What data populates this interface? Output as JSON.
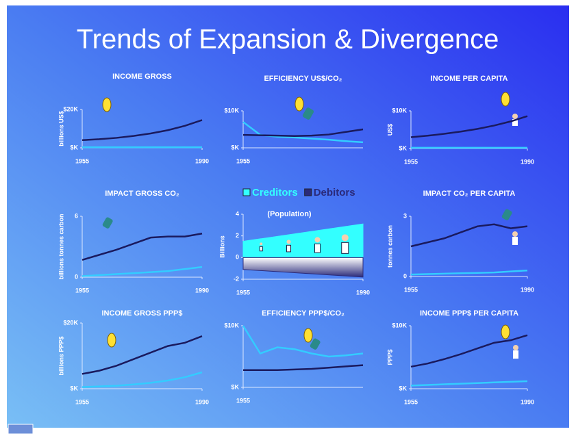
{
  "slide_title": "Trends of Expansion & Divergence",
  "chart_data": [
    {
      "type": "line",
      "title": "INCOME GROSS",
      "ylabel": "billions US$",
      "x": [
        1955,
        1960,
        1965,
        1970,
        1975,
        1980,
        1985,
        1990
      ],
      "series": [
        {
          "color": "#33ccff",
          "values": [
            300,
            300,
            300,
            300,
            300,
            300,
            300,
            300
          ]
        },
        {
          "color": "#1a1a5e",
          "values": [
            4000,
            4500,
            5200,
            6200,
            7500,
            9200,
            11500,
            14500
          ]
        }
      ],
      "xlim": [
        1955,
        1990
      ],
      "xticks": [
        1955,
        1990
      ],
      "ylim": [
        0,
        20000
      ],
      "yticks": [
        {
          "value": 0,
          "label": "$K"
        },
        {
          "value": 20000,
          "label": "$20K"
        }
      ]
    },
    {
      "type": "line",
      "title": "EFFICIENCY US$/CO₂",
      "x": [
        1955,
        1960,
        1965,
        1970,
        1975,
        1980,
        1985,
        1990
      ],
      "series": [
        {
          "color": "#33ccff",
          "values": [
            7000,
            3500,
            3000,
            2800,
            2500,
            2200,
            1800,
            1500
          ]
        },
        {
          "color": "#1a1a5e",
          "values": [
            3500,
            3400,
            3300,
            3200,
            3300,
            3600,
            4300,
            5000
          ]
        }
      ],
      "xlim": [
        1955,
        1990
      ],
      "xticks": [
        1955
      ],
      "ylim": [
        0,
        10000
      ],
      "yticks": [
        {
          "value": 0,
          "label": "$K"
        },
        {
          "value": 10000,
          "label": "$10K"
        }
      ]
    },
    {
      "type": "line",
      "title": "INCOME PER CAPITA",
      "ylabel": "US$",
      "x": [
        1955,
        1960,
        1965,
        1970,
        1975,
        1980,
        1985,
        1990
      ],
      "series": [
        {
          "color": "#33ccff",
          "values": [
            200,
            200,
            200,
            200,
            200,
            200,
            200,
            200
          ]
        },
        {
          "color": "#1a1a5e",
          "values": [
            3000,
            3400,
            3900,
            4500,
            5200,
            6100,
            7200,
            8600
          ]
        }
      ],
      "xlim": [
        1955,
        1990
      ],
      "xticks": [
        1955,
        1990
      ],
      "ylim": [
        0,
        10000
      ],
      "yticks": [
        {
          "value": 0,
          "label": "$K"
        },
        {
          "value": 10000,
          "label": "$10K"
        }
      ]
    },
    {
      "type": "line",
      "title": "IMPACT GROSS CO₂",
      "ylabel": "billions tonnes carbon",
      "x": [
        1955,
        1960,
        1965,
        1970,
        1975,
        1980,
        1985,
        1990
      ],
      "series": [
        {
          "color": "#33ccff",
          "values": [
            0.1,
            0.2,
            0.3,
            0.4,
            0.5,
            0.6,
            0.8,
            1.0
          ]
        },
        {
          "color": "#1a1a5e",
          "values": [
            1.7,
            2.2,
            2.7,
            3.3,
            3.9,
            4.0,
            4.0,
            4.3
          ]
        }
      ],
      "xlim": [
        1955,
        1990
      ],
      "xticks": [
        1955,
        1990
      ],
      "ylim": [
        0,
        6
      ],
      "yticks": [
        0,
        6
      ]
    },
    {
      "type": "area",
      "annotation": "(Population)",
      "ylabel": "Billions",
      "x": [
        1955,
        1990
      ],
      "series": [
        {
          "name": "Creditors",
          "color": "#33ffff",
          "values": [
            1.5,
            3.1
          ]
        },
        {
          "name": "Debitors",
          "color": "#2a2a7a",
          "values": [
            -1.1,
            -1.8
          ]
        }
      ],
      "xlim": [
        1955,
        1990
      ],
      "xticks": [
        1955,
        1990
      ],
      "ylim": [
        -2,
        4
      ],
      "yticks": [
        4,
        2,
        0,
        -2
      ]
    },
    {
      "type": "line",
      "title": "IMPACT CO₂ PER CAPITA",
      "ylabel": "tonnes carbon",
      "x": [
        1955,
        1960,
        1965,
        1970,
        1975,
        1980,
        1985,
        1990
      ],
      "series": [
        {
          "color": "#33ccff",
          "values": [
            0.1,
            0.12,
            0.14,
            0.16,
            0.18,
            0.2,
            0.25,
            0.3
          ]
        },
        {
          "color": "#1a1a5e",
          "values": [
            1.5,
            1.7,
            1.9,
            2.2,
            2.5,
            2.6,
            2.4,
            2.5
          ]
        }
      ],
      "xlim": [
        1955,
        1990
      ],
      "xticks": [
        1955,
        1990
      ],
      "ylim": [
        0,
        3
      ],
      "yticks": [
        0,
        3
      ]
    },
    {
      "type": "line",
      "title": "INCOME GROSS PPP$",
      "ylabel": "billions PPP$",
      "x": [
        1955,
        1960,
        1965,
        1970,
        1975,
        1980,
        1985,
        1990
      ],
      "series": [
        {
          "color": "#33ccff",
          "values": [
            500,
            700,
            900,
            1300,
            1800,
            2500,
            3500,
            5000
          ]
        },
        {
          "color": "#1a1a5e",
          "values": [
            4500,
            5500,
            7000,
            9000,
            11000,
            13000,
            14000,
            16000
          ]
        }
      ],
      "xlim": [
        1955,
        1990
      ],
      "xticks": [
        1955,
        1990
      ],
      "ylim": [
        0,
        20000
      ],
      "yticks": [
        {
          "value": 0,
          "label": "$K"
        },
        {
          "value": 20000,
          "label": "$20K"
        }
      ]
    },
    {
      "type": "line",
      "title": "EFFICIENCY PPP$/CO₂",
      "x": [
        1955,
        1960,
        1965,
        1970,
        1975,
        1980,
        1985,
        1990
      ],
      "series": [
        {
          "color": "#33ccff",
          "values": [
            10000,
            5500,
            6500,
            6200,
            5500,
            5000,
            5200,
            5500
          ]
        },
        {
          "color": "#1a1a5e",
          "values": [
            2800,
            2800,
            2800,
            2900,
            3000,
            3200,
            3400,
            3600
          ]
        }
      ],
      "xlim": [
        1955,
        1990
      ],
      "xticks": [
        1955
      ],
      "ylim": [
        0,
        10000
      ],
      "yticks": [
        {
          "value": 0,
          "label": "$K"
        },
        {
          "value": 10000,
          "label": "$10K"
        }
      ]
    },
    {
      "type": "line",
      "title": "INCOME PPP$ PER CAPITA",
      "ylabel": "PPP$",
      "x": [
        1955,
        1960,
        1965,
        1970,
        1975,
        1980,
        1985,
        1990
      ],
      "series": [
        {
          "color": "#33ccff",
          "values": [
            500,
            600,
            700,
            800,
            900,
            1000,
            1100,
            1200
          ]
        },
        {
          "color": "#1a1a5e",
          "values": [
            3500,
            4000,
            4700,
            5500,
            6400,
            7300,
            7700,
            8500
          ]
        }
      ],
      "xlim": [
        1955,
        1990
      ],
      "xticks": [
        1955,
        1990
      ],
      "ylim": [
        0,
        10000
      ],
      "yticks": [
        {
          "value": 0,
          "label": "$K"
        },
        {
          "value": 10000,
          "label": "$10K"
        }
      ]
    }
  ]
}
